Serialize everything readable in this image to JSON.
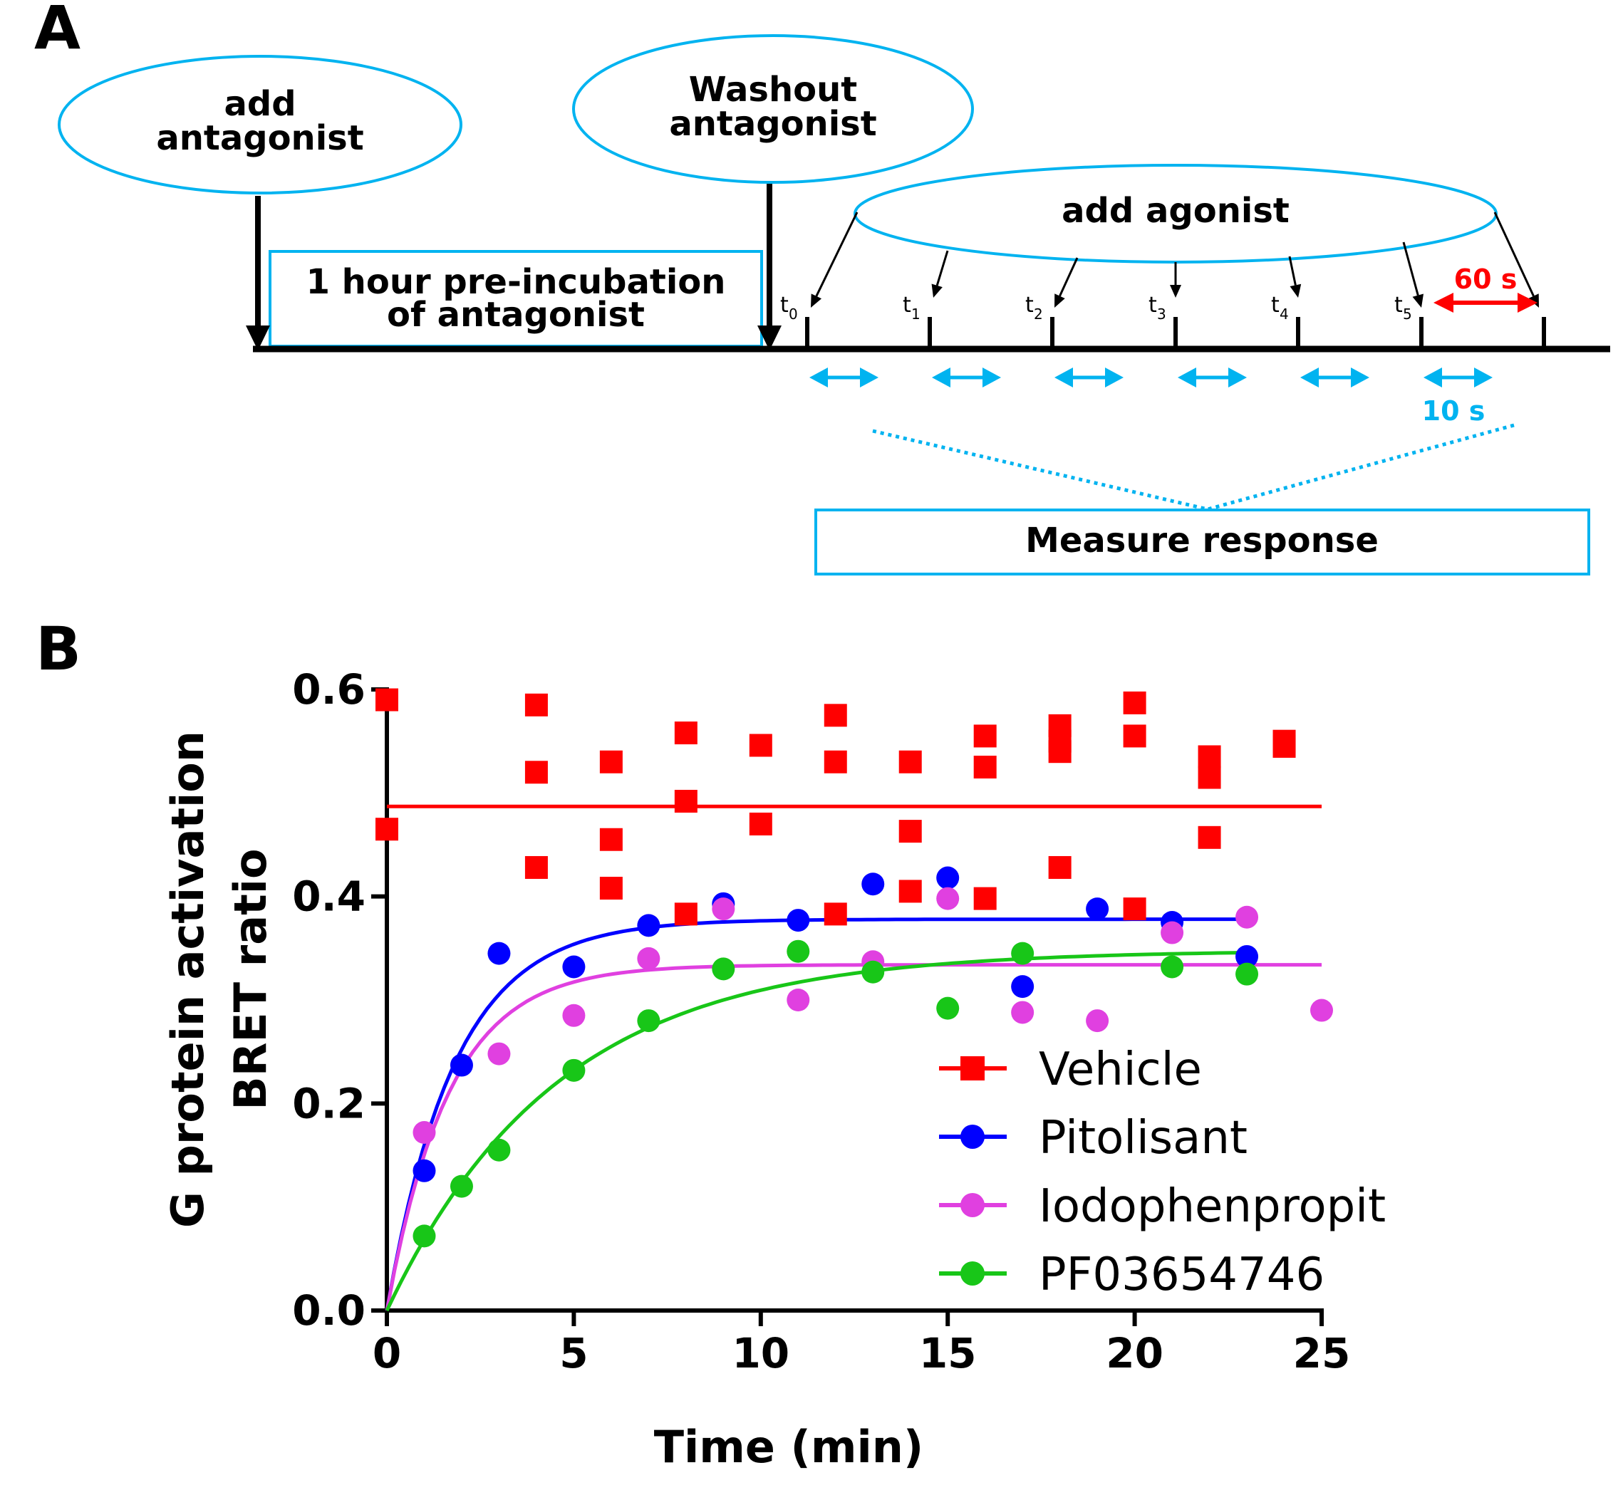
{
  "panel_a": {
    "letter": "A",
    "bubbles": {
      "add_antagonist": [
        "add",
        "antagonist"
      ],
      "washout": [
        "Washout",
        "antagonist"
      ],
      "add_agonist": "add agonist"
    },
    "preincubation": [
      "1 hour pre-incubation",
      "of antagonist"
    ],
    "time_points": [
      {
        "t": "t",
        "sub": "0"
      },
      {
        "t": "t",
        "sub": "1"
      },
      {
        "t": "t",
        "sub": "2"
      },
      {
        "t": "t",
        "sub": "3"
      },
      {
        "t": "t",
        "sub": "4"
      },
      {
        "t": "t",
        "sub": "5"
      }
    ],
    "interval_label": "60 s",
    "window_label": "10 s",
    "measure_label": "Measure response",
    "colors": {
      "cyan": "#00b3f0",
      "red": "#ff0000",
      "black": "#000000"
    }
  },
  "panel_b": {
    "letter": "B"
  },
  "chart_data": {
    "type": "scatter",
    "title": "",
    "xlabel": "Time (min)",
    "ylabel_lines": [
      "G protein activation",
      "BRET ratio"
    ],
    "xlim": [
      0,
      25
    ],
    "ylim": [
      0,
      0.6
    ],
    "xticks": [
      0,
      5,
      10,
      15,
      20,
      25
    ],
    "xtick_labels": [
      "0",
      "5",
      "10",
      "15",
      "20",
      "25"
    ],
    "yticks": [
      0,
      0.2,
      0.4,
      0.6
    ],
    "ytick_labels": [
      "0.0",
      "0.2",
      "0.4",
      "0.6"
    ],
    "grid": false,
    "legend_position": "bottom-right",
    "series": [
      {
        "name": "Vehicle",
        "color": "#ff0000",
        "marker": "square",
        "points": [
          [
            0,
            0.59
          ],
          [
            0,
            0.465
          ],
          [
            4,
            0.585
          ],
          [
            4,
            0.52
          ],
          [
            4,
            0.428
          ],
          [
            6,
            0.53
          ],
          [
            6,
            0.455
          ],
          [
            6,
            0.408
          ],
          [
            8,
            0.558
          ],
          [
            8,
            0.492
          ],
          [
            8,
            0.383
          ],
          [
            10,
            0.546
          ],
          [
            10,
            0.47
          ],
          [
            12,
            0.575
          ],
          [
            12,
            0.53
          ],
          [
            12,
            0.383
          ],
          [
            14,
            0.53
          ],
          [
            14,
            0.463
          ],
          [
            14,
            0.405
          ],
          [
            16,
            0.555
          ],
          [
            16,
            0.525
          ],
          [
            16,
            0.398
          ],
          [
            18,
            0.565
          ],
          [
            18,
            0.55
          ],
          [
            18,
            0.54
          ],
          [
            18,
            0.428
          ],
          [
            20,
            0.587
          ],
          [
            20,
            0.555
          ],
          [
            20,
            0.388
          ],
          [
            22,
            0.535
          ],
          [
            22,
            0.515
          ],
          [
            22,
            0.457
          ],
          [
            24,
            0.55
          ],
          [
            24,
            0.545
          ]
        ],
        "fit": {
          "model": "constant",
          "value": 0.487,
          "x_range": [
            0,
            25
          ]
        }
      },
      {
        "name": "Pitolisant",
        "color": "#0000ff",
        "marker": "circle",
        "points": [
          [
            1,
            0.135
          ],
          [
            2,
            0.237
          ],
          [
            3,
            0.345
          ],
          [
            5,
            0.332
          ],
          [
            7,
            0.372
          ],
          [
            9,
            0.393
          ],
          [
            11,
            0.377
          ],
          [
            13,
            0.412
          ],
          [
            15,
            0.418
          ],
          [
            17,
            0.313
          ],
          [
            19,
            0.388
          ],
          [
            21,
            0.375
          ],
          [
            23,
            0.342
          ]
        ],
        "fit": {
          "model": "one-phase association",
          "plateau": 0.378,
          "k": 0.55,
          "x_range": [
            0,
            23
          ]
        }
      },
      {
        "name": "Iodophenpropit",
        "color": "#e040e0",
        "marker": "circle",
        "points": [
          [
            1,
            0.172
          ],
          [
            3,
            0.248
          ],
          [
            5,
            0.285
          ],
          [
            7,
            0.34
          ],
          [
            9,
            0.388
          ],
          [
            11,
            0.3
          ],
          [
            13,
            0.337
          ],
          [
            15,
            0.398
          ],
          [
            17,
            0.288
          ],
          [
            19,
            0.28
          ],
          [
            21,
            0.365
          ],
          [
            23,
            0.38
          ],
          [
            25,
            0.29
          ]
        ],
        "fit": {
          "model": "one-phase association",
          "plateau": 0.334,
          "k": 0.6,
          "x_range": [
            0,
            25
          ]
        }
      },
      {
        "name": "PF03654746",
        "color": "#18c618",
        "marker": "circle",
        "points": [
          [
            1,
            0.072
          ],
          [
            2,
            0.12
          ],
          [
            3,
            0.155
          ],
          [
            5,
            0.232
          ],
          [
            7,
            0.28
          ],
          [
            9,
            0.33
          ],
          [
            11,
            0.347
          ],
          [
            13,
            0.327
          ],
          [
            15,
            0.292
          ],
          [
            17,
            0.345
          ],
          [
            21,
            0.332
          ],
          [
            23,
            0.325
          ]
        ],
        "fit": {
          "model": "one-phase association",
          "plateau": 0.348,
          "k": 0.22,
          "x_range": [
            0,
            23
          ]
        }
      }
    ]
  }
}
